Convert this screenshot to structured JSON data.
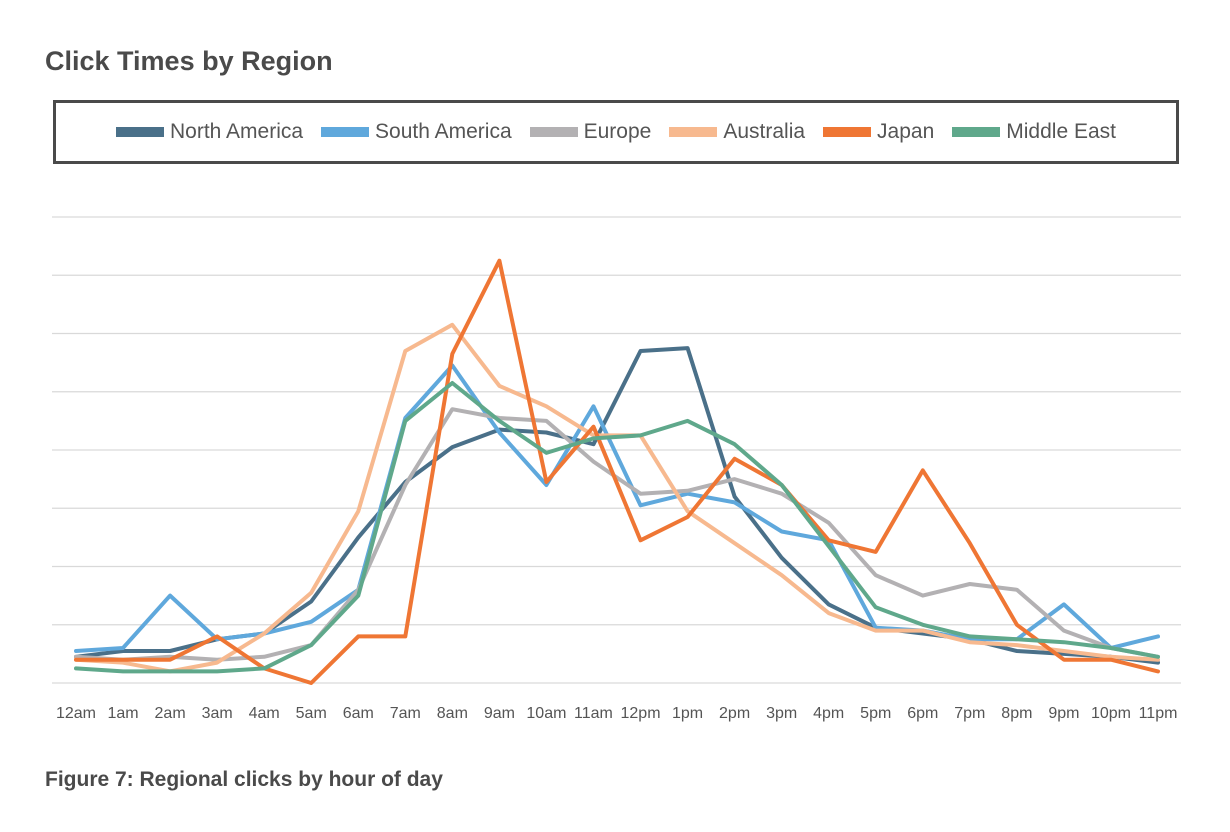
{
  "chart_data": {
    "type": "line",
    "title": "Click Times by Region",
    "caption": "Figure 7: Regional clicks by hour of day",
    "categories": [
      "12am",
      "1am",
      "2am",
      "3am",
      "4am",
      "5am",
      "6am",
      "7am",
      "8am",
      "9am",
      "10am",
      "11am",
      "12pm",
      "1pm",
      "2pm",
      "3pm",
      "4pm",
      "5pm",
      "6pm",
      "7pm",
      "8pm",
      "9pm",
      "10pm",
      "11pm"
    ],
    "ylim": [
      0,
      8
    ],
    "grid": true,
    "legend_position": "top",
    "series": [
      {
        "name": "North America",
        "color": "#4a7089",
        "values": [
          0.45,
          0.55,
          0.55,
          0.75,
          0.85,
          1.4,
          2.5,
          3.45,
          4.05,
          4.35,
          4.3,
          4.1,
          5.7,
          5.75,
          3.2,
          2.15,
          1.35,
          0.95,
          0.85,
          0.75,
          0.55,
          0.5,
          0.45,
          0.35
        ]
      },
      {
        "name": "South America",
        "color": "#5fa8dc",
        "values": [
          0.55,
          0.6,
          1.5,
          0.75,
          0.85,
          1.05,
          1.6,
          4.55,
          5.45,
          4.3,
          3.4,
          4.75,
          3.05,
          3.25,
          3.1,
          2.6,
          2.45,
          0.95,
          0.9,
          0.75,
          0.75,
          1.35,
          0.6,
          0.8
        ]
      },
      {
        "name": "Europe",
        "color": "#b3b1b3",
        "values": [
          0.45,
          0.4,
          0.45,
          0.4,
          0.45,
          0.65,
          1.6,
          3.4,
          4.7,
          4.55,
          4.5,
          3.8,
          3.25,
          3.3,
          3.5,
          3.25,
          2.75,
          1.85,
          1.5,
          1.7,
          1.6,
          0.9,
          0.6,
          0.45
        ]
      },
      {
        "name": "Australia",
        "color": "#f7b98f",
        "values": [
          0.4,
          0.35,
          0.2,
          0.35,
          0.85,
          1.55,
          2.95,
          5.7,
          6.15,
          5.1,
          4.75,
          4.25,
          4.25,
          2.95,
          2.4,
          1.85,
          1.2,
          0.9,
          0.9,
          0.7,
          0.65,
          0.55,
          0.45,
          0.4
        ]
      },
      {
        "name": "Japan",
        "color": "#ef7634",
        "values": [
          0.4,
          0.4,
          0.4,
          0.8,
          0.25,
          0.0,
          0.8,
          0.8,
          5.65,
          7.25,
          3.45,
          4.4,
          2.45,
          2.85,
          3.85,
          3.4,
          2.45,
          2.25,
          3.65,
          2.4,
          1.0,
          0.4,
          0.4,
          0.2
        ]
      },
      {
        "name": "Middle East",
        "color": "#5fa88b",
        "values": [
          0.25,
          0.2,
          0.2,
          0.2,
          0.25,
          0.65,
          1.5,
          4.5,
          5.15,
          4.5,
          3.95,
          4.2,
          4.25,
          4.5,
          4.1,
          3.4,
          2.35,
          1.3,
          1.0,
          0.8,
          0.75,
          0.7,
          0.6,
          0.45
        ]
      }
    ]
  }
}
